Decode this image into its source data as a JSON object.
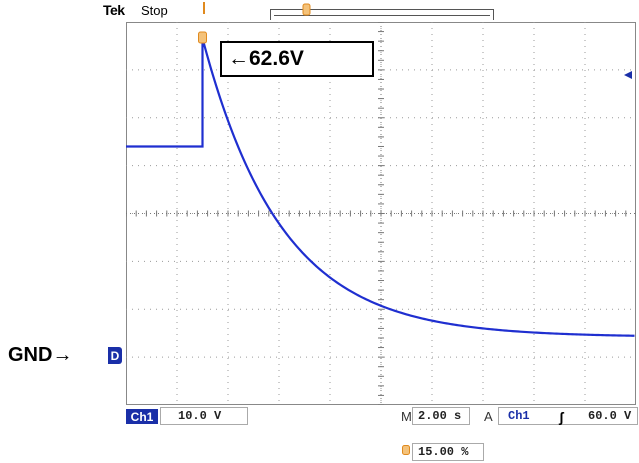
{
  "header": {
    "brand": "Tek",
    "run_state": "Stop"
  },
  "annotations": {
    "peak_label": "←62.6V",
    "ground_label": "GND→"
  },
  "markers": {
    "ground_marker": "D",
    "trigger_marker_icon": "trigger-position-icon",
    "trigger_level_icon": "trigger-level-arrow-icon"
  },
  "status": {
    "channel_badge": "Ch1",
    "channel_scale": "10.0 V",
    "timebase_prefix": "M",
    "timebase": "2.00 s",
    "trigger_mode": "A",
    "trigger_source": "Ch1",
    "trigger_slope_glyph": "ʃ",
    "trigger_level": "60.0 V",
    "trigger_position": "15.00 %"
  },
  "colors": {
    "trace": "#1f2fd0",
    "marker_orange": "#e08a1e",
    "channel_blue": "#1a2fa8",
    "grid": "#9a9a9a"
  },
  "waveform": {
    "baseline_v": 40.0,
    "peak_v": 62.6,
    "final_v": 0.2,
    "step_time_div": 1.5,
    "tau_div": 1.55,
    "divisions_x": 10,
    "divisions_y": 8,
    "volts_per_div": 10.0,
    "ground_div_from_top": 6.6
  }
}
